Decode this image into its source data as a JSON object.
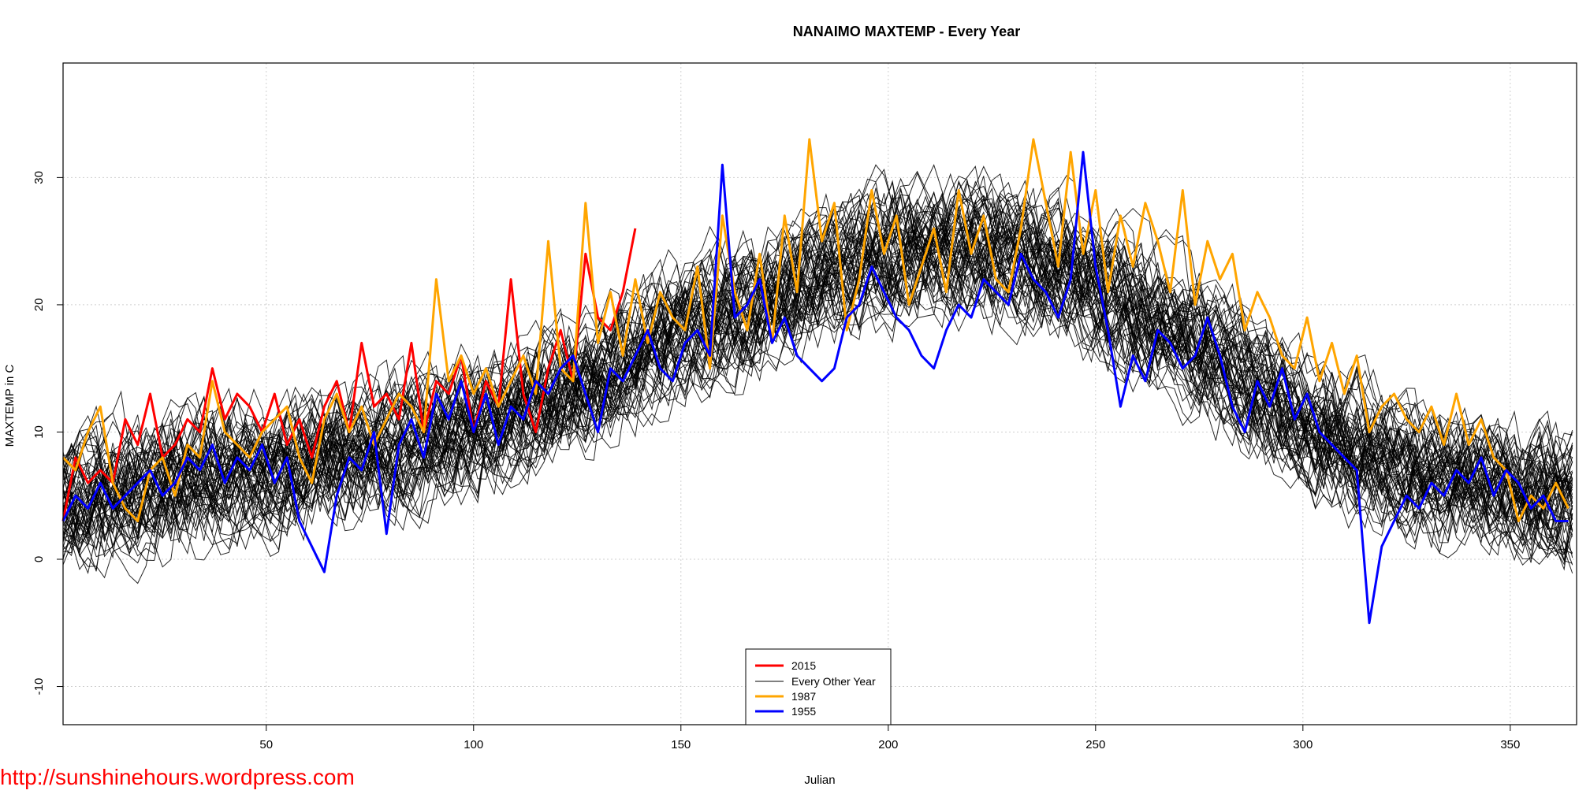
{
  "chart_data": {
    "type": "line",
    "title": "NANAIMO MAXTEMP - Every Year",
    "xlabel": "Julian",
    "ylabel": "MAXTEMP in C",
    "xlim": [
      1,
      366
    ],
    "ylim": [
      -13,
      39
    ],
    "x_ticks": [
      50,
      100,
      150,
      200,
      250,
      300,
      350
    ],
    "y_ticks": [
      -10,
      0,
      10,
      20,
      30
    ],
    "x_tick_labels": [
      "50",
      "100",
      "150",
      "200",
      "250",
      "300",
      "350"
    ],
    "y_tick_labels": [
      "-10",
      "0",
      "10",
      "20",
      "30"
    ],
    "grid": true,
    "legend_position": "bottom-center",
    "background_years": {
      "name": "Every Other Year",
      "color": "#000000",
      "count": 60,
      "seasonal_mean_knots": {
        "x": [
          1,
          30,
          60,
          90,
          120,
          150,
          180,
          200,
          220,
          240,
          260,
          280,
          300,
          330,
          366
        ],
        "y": [
          5,
          6.5,
          8,
          10,
          13,
          18,
          22,
          24.5,
          25,
          23.5,
          20,
          16,
          11,
          7,
          5
        ]
      },
      "spread_c": 6
    },
    "series": [
      {
        "name": "2015",
        "color": "#ff0000",
        "x": [
          1,
          4,
          7,
          10,
          13,
          16,
          19,
          22,
          25,
          28,
          31,
          34,
          37,
          40,
          43,
          46,
          49,
          52,
          55,
          58,
          61,
          64,
          67,
          70,
          73,
          76,
          79,
          82,
          85,
          88,
          91,
          94,
          97,
          100,
          103,
          106,
          109,
          112,
          115,
          118,
          121,
          124,
          127,
          130,
          133,
          136,
          139
        ],
        "y": [
          3,
          8,
          6,
          7,
          6,
          11,
          9,
          13,
          8,
          9,
          11,
          10,
          15,
          11,
          13,
          12,
          10,
          13,
          9,
          11,
          8,
          12,
          14,
          10,
          17,
          12,
          13,
          11,
          17,
          10,
          14,
          13,
          16,
          10,
          14,
          12,
          22,
          13,
          10,
          15,
          18,
          14,
          24,
          19,
          18,
          21,
          26
        ]
      },
      {
        "name": "1987",
        "color": "#ffa500",
        "x": [
          1,
          4,
          7,
          10,
          13,
          16,
          19,
          22,
          25,
          28,
          31,
          34,
          37,
          40,
          43,
          46,
          49,
          52,
          55,
          58,
          61,
          64,
          67,
          70,
          73,
          76,
          79,
          82,
          85,
          88,
          91,
          94,
          97,
          100,
          103,
          106,
          109,
          112,
          115,
          118,
          121,
          124,
          127,
          130,
          133,
          136,
          139,
          142,
          145,
          148,
          151,
          154,
          157,
          160,
          163,
          166,
          169,
          172,
          175,
          178,
          181,
          184,
          187,
          190,
          193,
          196,
          199,
          202,
          205,
          208,
          211,
          214,
          217,
          220,
          223,
          226,
          229,
          232,
          235,
          238,
          241,
          244,
          247,
          250,
          253,
          256,
          259,
          262,
          265,
          268,
          271,
          274,
          277,
          280,
          283,
          286,
          289,
          292,
          295,
          298,
          301,
          304,
          307,
          310,
          313,
          316,
          319,
          322,
          325,
          328,
          331,
          334,
          337,
          340,
          343,
          346,
          349,
          352,
          355,
          358,
          361,
          364
        ],
        "y": [
          8,
          7,
          10,
          12,
          6,
          4,
          3,
          7,
          8,
          5,
          9,
          8,
          14,
          10,
          9,
          8,
          10,
          11,
          12,
          8,
          6,
          11,
          13,
          10,
          12,
          9,
          11,
          13,
          12,
          10,
          22,
          14,
          16,
          13,
          15,
          12,
          14,
          16,
          13,
          25,
          15,
          14,
          28,
          17,
          21,
          16,
          22,
          17,
          21,
          19,
          18,
          23,
          15,
          27,
          21,
          18,
          24,
          17,
          27,
          21,
          33,
          25,
          28,
          18,
          22,
          29,
          24,
          27,
          20,
          23,
          26,
          21,
          29,
          24,
          27,
          22,
          21,
          26,
          33,
          28,
          23,
          32,
          24,
          29,
          21,
          27,
          23,
          28,
          25,
          21,
          29,
          20,
          25,
          22,
          24,
          18,
          21,
          19,
          16,
          15,
          19,
          14,
          17,
          13,
          16,
          10,
          12,
          13,
          11,
          10,
          12,
          9,
          13,
          9,
          11,
          8,
          7,
          3,
          5,
          4,
          6,
          4
        ]
      },
      {
        "name": "1955",
        "color": "#0000ff",
        "x": [
          1,
          4,
          7,
          10,
          13,
          16,
          19,
          22,
          25,
          28,
          31,
          34,
          37,
          40,
          43,
          46,
          49,
          52,
          55,
          58,
          61,
          64,
          67,
          70,
          73,
          76,
          79,
          82,
          85,
          88,
          91,
          94,
          97,
          100,
          103,
          106,
          109,
          112,
          115,
          118,
          121,
          124,
          127,
          130,
          133,
          136,
          139,
          142,
          145,
          148,
          151,
          154,
          157,
          160,
          163,
          166,
          169,
          172,
          175,
          178,
          181,
          184,
          187,
          190,
          193,
          196,
          199,
          202,
          205,
          208,
          211,
          214,
          217,
          220,
          223,
          226,
          229,
          232,
          235,
          238,
          241,
          244,
          247,
          250,
          253,
          256,
          259,
          262,
          265,
          268,
          271,
          274,
          277,
          280,
          283,
          286,
          289,
          292,
          295,
          298,
          301,
          304,
          307,
          310,
          313,
          316,
          319,
          322,
          325,
          328,
          331,
          334,
          337,
          340,
          343,
          346,
          349,
          352,
          355,
          358,
          361,
          364
        ],
        "y": [
          3,
          5,
          4,
          6,
          4,
          5,
          6,
          7,
          5,
          6,
          8,
          7,
          9,
          6,
          8,
          7,
          9,
          6,
          8,
          3,
          1,
          -1,
          5,
          8,
          7,
          10,
          2,
          9,
          11,
          8,
          13,
          11,
          14,
          10,
          13,
          9,
          12,
          11,
          14,
          13,
          15,
          16,
          13,
          10,
          15,
          14,
          16,
          18,
          15,
          14,
          17,
          18,
          16,
          31,
          19,
          20,
          22,
          17,
          19,
          16,
          15,
          14,
          15,
          19,
          20,
          23,
          21,
          19,
          18,
          16,
          15,
          18,
          20,
          19,
          22,
          21,
          20,
          24,
          22,
          21,
          19,
          22,
          32,
          23,
          18,
          12,
          16,
          14,
          18,
          17,
          15,
          16,
          19,
          16,
          12,
          10,
          14,
          12,
          15,
          11,
          13,
          10,
          9,
          8,
          7,
          -5,
          1,
          3,
          5,
          4,
          6,
          5,
          7,
          6,
          8,
          5,
          7,
          6,
          4,
          5,
          3,
          3
        ]
      }
    ]
  },
  "watermark": "http://sunshinehours.wordpress.com"
}
